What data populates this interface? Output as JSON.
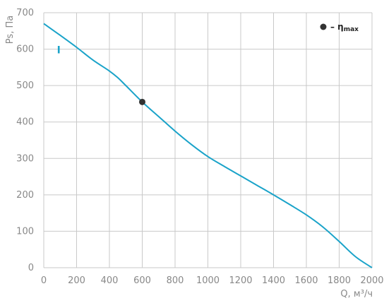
{
  "chart_data": {
    "type": "line",
    "xlabel": "Q, м³/ч",
    "ylabel": "Ps, Па",
    "xlim": [
      0,
      2000
    ],
    "ylim": [
      0,
      700
    ],
    "x_ticks": [
      0,
      200,
      400,
      600,
      800,
      1000,
      1200,
      1400,
      1600,
      1800,
      2000
    ],
    "y_ticks": [
      0,
      100,
      200,
      300,
      400,
      500,
      600,
      700
    ],
    "grid": true,
    "legend": {
      "marker_label": "– η",
      "marker_sub": "max",
      "placement": "top-right"
    },
    "series": [
      {
        "name": "I",
        "color": "#1aa3c9",
        "x": [
          0,
          100,
          200,
          300,
          400,
          450,
          500,
          600,
          700,
          800,
          900,
          1000,
          1100,
          1200,
          1300,
          1400,
          1500,
          1600,
          1700,
          1800,
          1900,
          2000
        ],
        "y": [
          670,
          638,
          605,
          570,
          540,
          522,
          500,
          455,
          415,
          375,
          338,
          305,
          278,
          252,
          226,
          200,
          173,
          145,
          112,
          72,
          30,
          0
        ]
      }
    ],
    "markers": [
      {
        "x": 600,
        "y": 455,
        "color": "#333333"
      }
    ]
  }
}
